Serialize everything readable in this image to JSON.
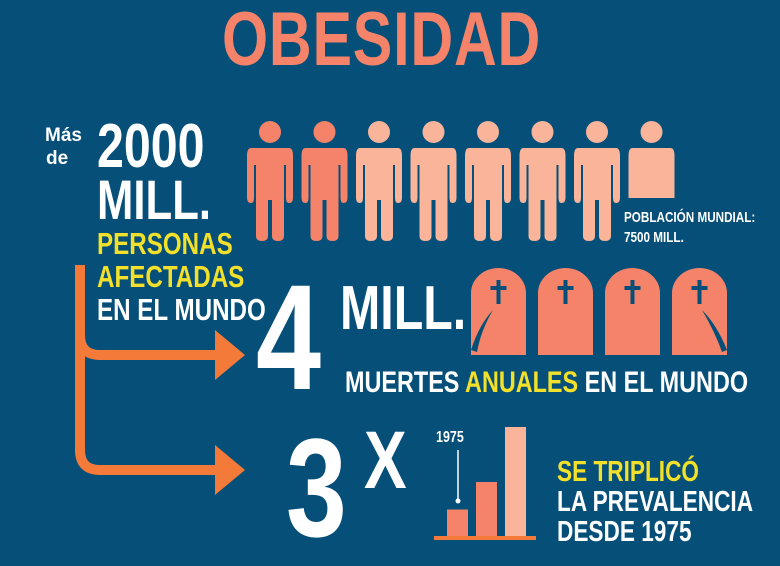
{
  "title": "OBESIDAD",
  "affected": {
    "prefix_line1": "Más",
    "prefix_line2": "de",
    "number": "2000",
    "unit": "MILL.",
    "line1": "PERSONAS",
    "line2": "AFECTADAS",
    "line3": "EN EL MUNDO"
  },
  "population": {
    "label": "POBLACIÓN MUNDIAL:",
    "value": "7500 MILL.",
    "figures_total": 8,
    "figures_highlighted": 2,
    "last_figure_fraction": 0.5
  },
  "deaths": {
    "number": "4",
    "unit": "MILL.",
    "caption_pre": "MUERTES ",
    "caption_highlight": "ANUALES",
    "caption_post": " EN EL MUNDO",
    "tombstones": 4
  },
  "prevalence": {
    "number": "3",
    "superscript": "X",
    "chart_label": "1975",
    "bars": [
      1,
      2,
      4
    ],
    "line1": "SE TRIPLICÓ",
    "line2": "LA PREVALENCIA",
    "line3": "DESDE 1975"
  },
  "colors": {
    "background": "#054f78",
    "salmon": "#f4836a",
    "light_salmon": "#f9b49a",
    "yellow": "#f2e02a",
    "arrow_orange": "#f47a3a"
  }
}
